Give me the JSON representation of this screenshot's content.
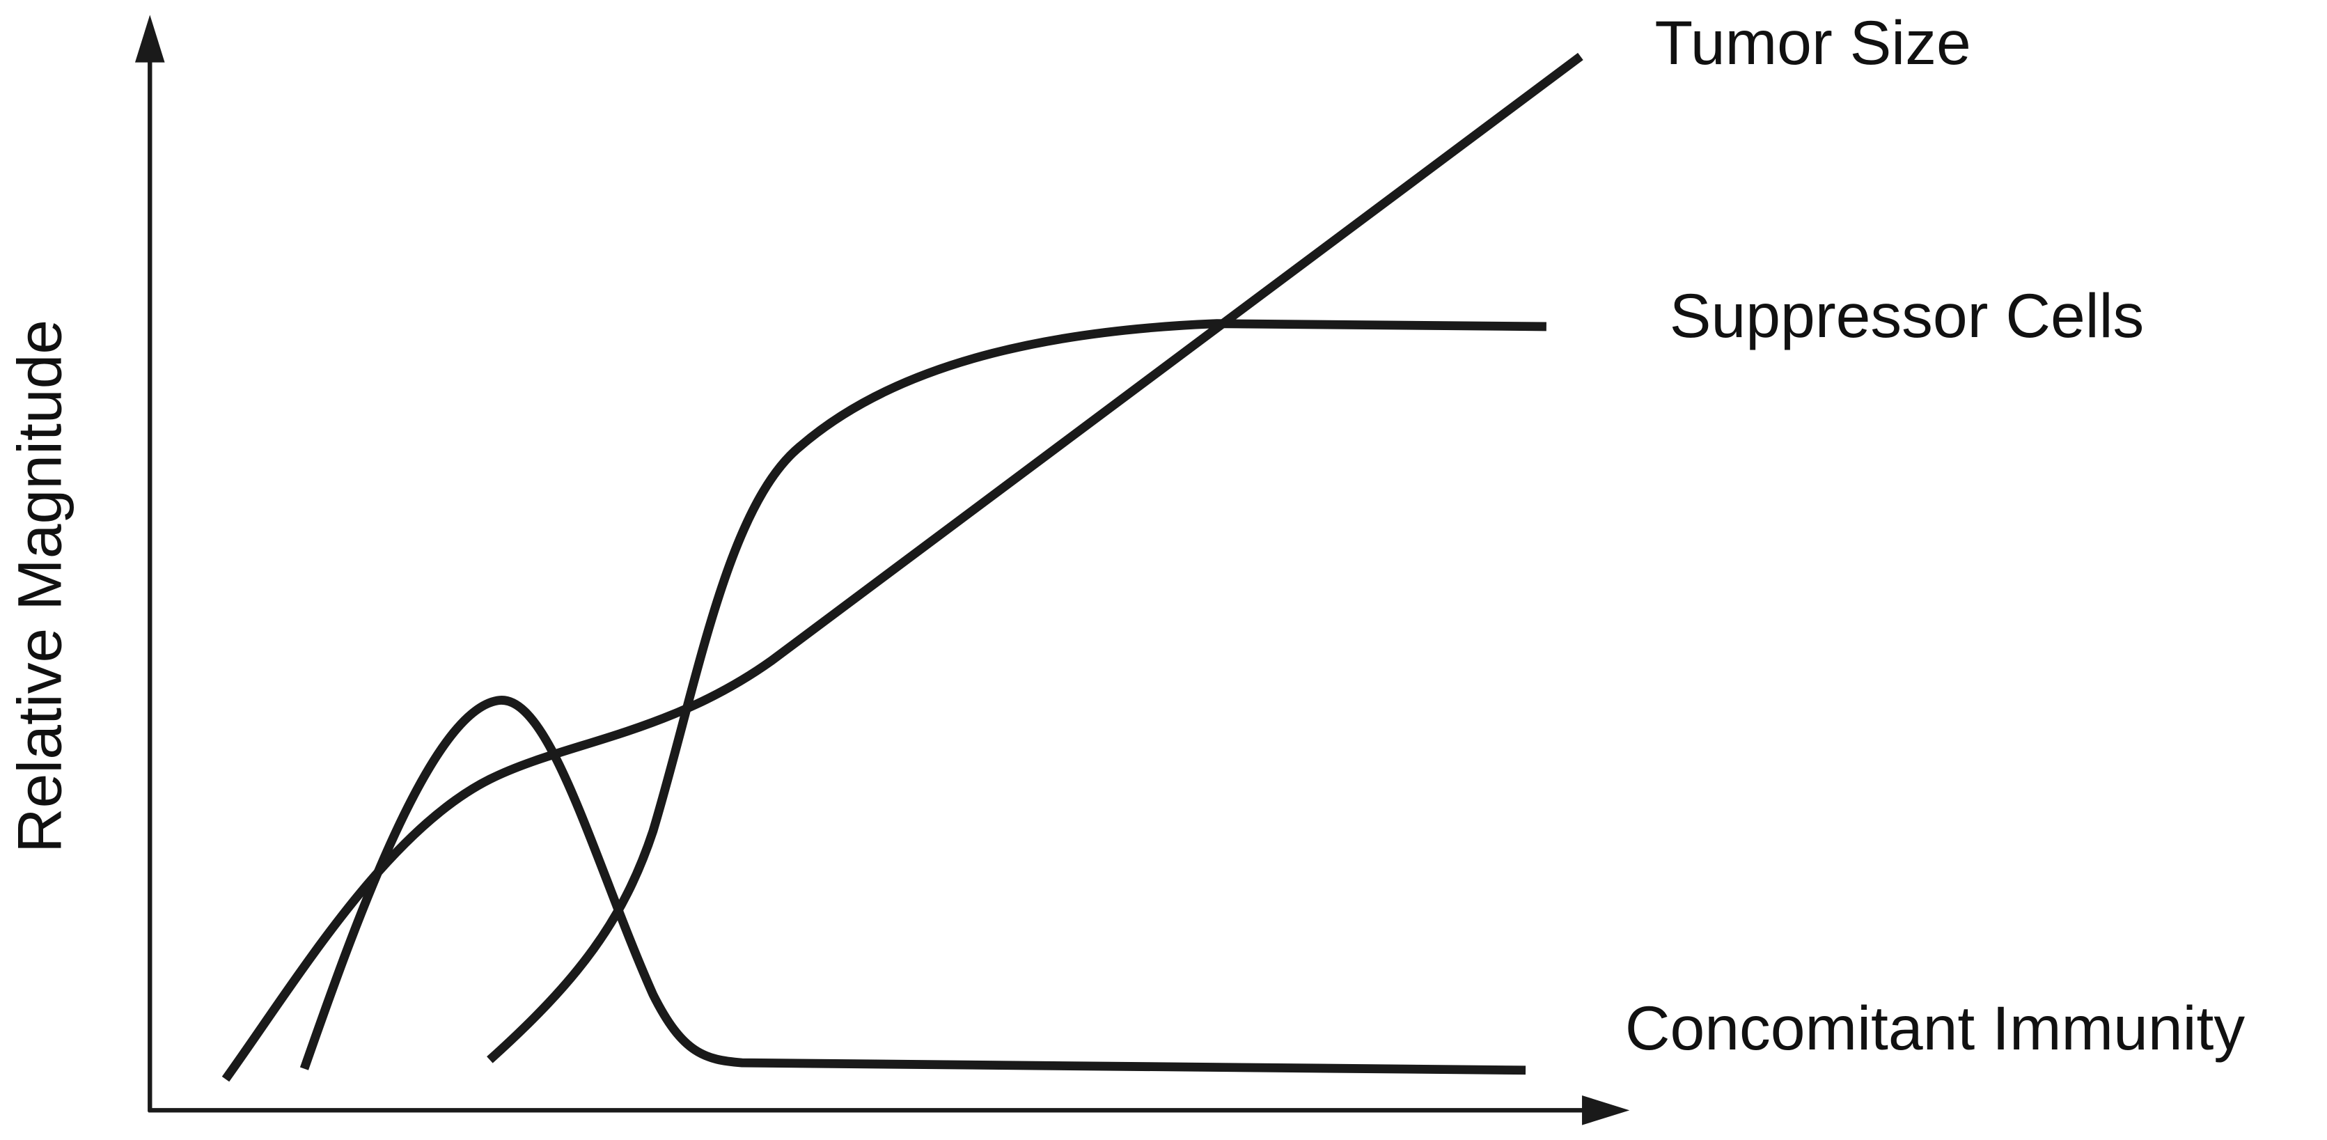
{
  "axes": {
    "y_label": "Relative Magnitude"
  },
  "curves": [
    {
      "label": "Tumor Size"
    },
    {
      "label": "Suppressor Cells"
    },
    {
      "label": "Concomitant Immunity"
    }
  ]
}
